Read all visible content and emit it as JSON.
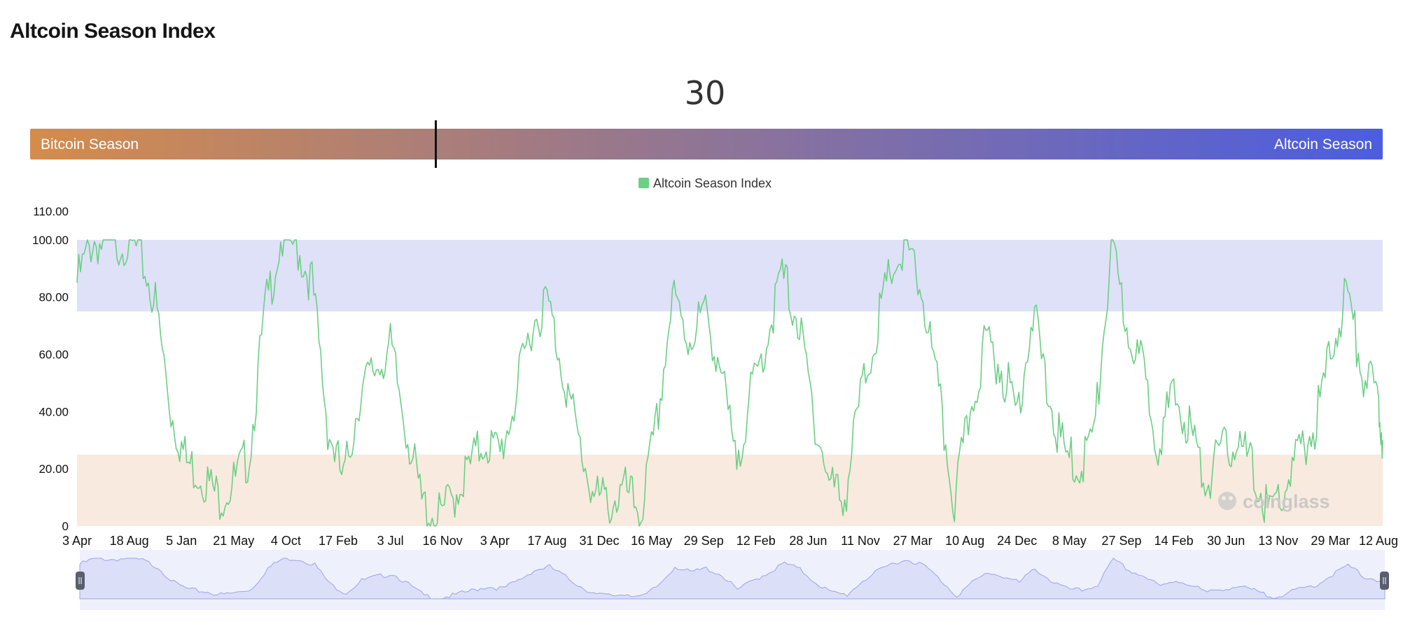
{
  "page": {
    "title": "Altcoin Season Index"
  },
  "gauge": {
    "value": 30,
    "value_text": "30",
    "left_label": "Bitcoin Season",
    "right_label": "Altcoin Season",
    "gradient_from": "#d48c4c",
    "gradient_to": "#4b5de0"
  },
  "legend": {
    "label": "Altcoin Season Index",
    "color": "#6ccf85"
  },
  "watermark": "coinglass",
  "chart_data": {
    "type": "line",
    "title": "",
    "xlabel": "",
    "ylabel": "",
    "ylim": [
      0,
      110
    ],
    "y_ticks": [
      "0",
      "20.00",
      "40.00",
      "60.00",
      "80.00",
      "100.00",
      "110.00"
    ],
    "y_tick_values": [
      0,
      20,
      40,
      60,
      80,
      100,
      110
    ],
    "x_tick_labels": [
      "3 Apr",
      "18 Aug",
      "5 Jan",
      "21 May",
      "4 Oct",
      "17 Feb",
      "3 Jul",
      "16 Nov",
      "3 Apr",
      "17 Aug",
      "31 Dec",
      "16 May",
      "29 Sep",
      "12 Feb",
      "28 Jun",
      "11 Nov",
      "27 Mar",
      "10 Aug",
      "24 Dec",
      "8 May",
      "27 Sep",
      "14 Feb",
      "30 Jun",
      "13 Nov",
      "29 Mar",
      "12 Aug"
    ],
    "bands": [
      {
        "from": 75,
        "to": 100,
        "color": "#dfe1f8",
        "meaning": "Altcoin Season"
      },
      {
        "from": 0,
        "to": 25,
        "color": "#f8eadf",
        "meaning": "Bitcoin Season"
      }
    ],
    "series": [
      {
        "name": "Altcoin Season Index",
        "color": "#6ccf85",
        "x": [
          0,
          0.3,
          0.6,
          0.9,
          1.2,
          1.5,
          1.8,
          2.1,
          2.4,
          2.7,
          3.0,
          3.3,
          3.6,
          3.9,
          4.2,
          4.5,
          4.8,
          5.1,
          5.4,
          5.7,
          6.0,
          6.3,
          6.6,
          6.9,
          7.2,
          7.5,
          7.8,
          8.1,
          8.4,
          8.7,
          9.0,
          9.3,
          9.6,
          9.9,
          10.2,
          10.5,
          10.8,
          11.1,
          11.4,
          11.7,
          12.0,
          12.3,
          12.6,
          12.9,
          13.2,
          13.5,
          13.8,
          14.1,
          14.4,
          14.7,
          15.0,
          15.3,
          15.6,
          15.9,
          16.2,
          16.5,
          16.8,
          17.1,
          17.4,
          17.7,
          18.0,
          18.3,
          18.6,
          18.9,
          19.2,
          19.5,
          19.8,
          20.1,
          20.4,
          20.7,
          21.0,
          21.3,
          21.6,
          21.9,
          22.2,
          22.5,
          22.8,
          23.1,
          23.4,
          23.7,
          24.0,
          24.3,
          24.6,
          24.9,
          25.0
        ],
        "values": [
          85,
          100,
          97,
          100,
          95,
          78,
          40,
          22,
          18,
          10,
          15,
          25,
          75,
          100,
          98,
          85,
          35,
          15,
          45,
          55,
          62,
          35,
          8,
          2,
          10,
          20,
          30,
          25,
          45,
          70,
          79,
          55,
          30,
          10,
          8,
          12,
          5,
          35,
          80,
          65,
          75,
          58,
          22,
          45,
          65,
          88,
          72,
          40,
          15,
          10,
          45,
          68,
          90,
          96,
          80,
          45,
          8,
          40,
          65,
          55,
          40,
          75,
          45,
          25,
          20,
          35,
          97,
          70,
          55,
          30,
          45,
          35,
          15,
          25,
          30,
          20,
          5,
          12,
          25,
          35,
          60,
          82,
          55,
          45,
          30
        ]
      }
    ],
    "navigator": true,
    "grid": false,
    "legend_position": "top-center"
  }
}
